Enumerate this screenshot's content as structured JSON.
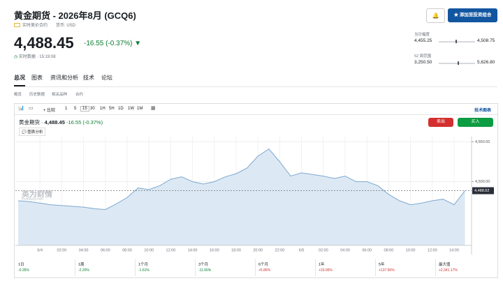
{
  "header": {
    "title": "黄金期货 - 2026年8月 (GCQ6)",
    "contract": "实时美价合约",
    "currency": "货币: USD",
    "button": "添加至投资组合"
  },
  "quote": {
    "price": "4,488.45",
    "change": "-16.55 (-0.37%)",
    "time": "实时数据 · 15:19:08"
  },
  "ranges": [
    {
      "label": "当日幅度",
      "low": "4,455.25",
      "high": "4,508.75"
    },
    {
      "label": "52 周范围",
      "low": "3,250.50",
      "high": "5,626.80"
    }
  ],
  "tabs": [
    "总况",
    "图表",
    "资讯和分析",
    "技术",
    "论坛"
  ],
  "subtabs": [
    "概览",
    "历史数据",
    "相关品种",
    "合约"
  ],
  "toolbar": {
    "compare": "+ 比较",
    "intervals": [
      "1",
      "5",
      "15",
      "30",
      "1H",
      "5H",
      "1D",
      "1W",
      "1M"
    ],
    "tech_chart": "技术图表"
  },
  "chart_header": {
    "name": "黄金期货",
    "price": "4,488.45",
    "change": "-16.55 (-0.37%)",
    "sell": "卖出",
    "buy": "买入",
    "analysis": "图表分析",
    "watermark": "英为财情",
    "watermark_sub": "Investing.com"
  },
  "chart_data": {
    "type": "line",
    "color": "#7fa8cf",
    "fill": "#dce9f4",
    "categories": [
      null,
      null,
      "6/4",
      null,
      "02:00",
      null,
      "04:00",
      null,
      "06:00",
      null,
      "08:00",
      null,
      "10:00",
      null,
      "12:00",
      null,
      "14:00",
      null,
      "16:00",
      null,
      "18:00",
      null,
      "20:00",
      null,
      "22:00",
      null,
      "6/5",
      null,
      "02:00",
      null,
      "04:00",
      null,
      "06:00",
      null,
      "08:00",
      null,
      "10:00",
      null,
      "12:00",
      null,
      "14:00",
      null
    ],
    "values": [
      4476,
      4475,
      4473,
      4471,
      4470,
      4469,
      4468,
      4466,
      4465,
      4472,
      4480,
      4492,
      4490,
      4495,
      4503,
      4506,
      4500,
      4497,
      4500,
      4506,
      4510,
      4517,
      4532,
      4541,
      4525,
      4507,
      4511,
      4509,
      4507,
      4504,
      4507,
      4500,
      4500,
      4495,
      4484,
      4476,
      4471,
      4473,
      4476,
      4478,
      4471,
      4488.62
    ],
    "ylim": [
      4420,
      4560
    ],
    "yticks": [
      {
        "value": 4550,
        "label": "4,550.00"
      },
      {
        "value": 4500,
        "label": "4,500.00"
      }
    ],
    "current": {
      "value": 4488.62,
      "label": "4,488.62"
    },
    "grid": true
  },
  "performance": [
    {
      "period": "1日",
      "change": "-0.35%"
    },
    {
      "period": "1周",
      "change": "-2.20%"
    },
    {
      "period": "1个月",
      "change": "-1.61%"
    },
    {
      "period": "3个月",
      "change": "-11.56%"
    },
    {
      "period": "6个月",
      "change": "+5.86%"
    },
    {
      "period": "1年",
      "change": "+33.06%"
    },
    {
      "period": "5年",
      "change": "+137.56%"
    },
    {
      "period": "最大值",
      "change": "+2,341.17%"
    }
  ]
}
